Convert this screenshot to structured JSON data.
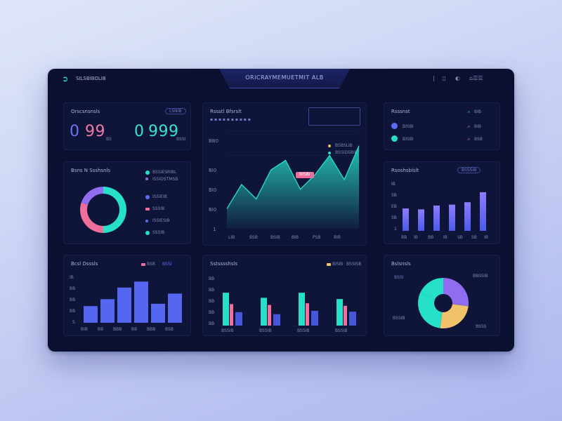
{
  "topbar": {
    "brand": "SILSBIBOLIB",
    "title": "ORICRAYMEMUETMIT ALB",
    "icons": [
      "help-icon",
      "info-icon",
      "settings-icon",
      "user-icon"
    ]
  },
  "kpi_card": {
    "title": "Orscsnsnsls",
    "badge": "LSNIB",
    "value_a": "99",
    "value_b": "999",
    "sub_a": "BS",
    "sub_b": "BSSI"
  },
  "donut_card": {
    "title": "Bsns N Ssshsnls",
    "legend": [
      "BSSIESRIBL",
      "ISSIDSTMSB",
      "ISSIEIB",
      "SSSIB",
      "ISSIESIB",
      "SSSIB"
    ]
  },
  "area_card": {
    "title": "Rssstl Bfsrslt",
    "badge": "",
    "legend": [
      "BSBSLIB",
      "BSSIDSBIB"
    ],
    "tooltip": "BISBI",
    "yticks": [
      "BB0",
      "BI0",
      "BI0",
      "BI0",
      "1"
    ],
    "xticks": [
      "LIB",
      "BSB",
      "BSIB",
      "BIB",
      "PSB",
      "BIB"
    ]
  },
  "bars_right_card": {
    "title": "Rsoshsblslt",
    "badge": "BSSSIB",
    "yticks": [
      "IB",
      "SB",
      "EB",
      "SB",
      "1"
    ],
    "xticks": [
      "BB",
      "IB",
      "BB",
      "IB",
      "SB",
      "SB",
      "IB"
    ]
  },
  "list_card": {
    "title": "Rsssnst",
    "rows": [
      {
        "label": "",
        "value": "BIB"
      },
      {
        "label": "BISBI",
        "value": "BIB"
      },
      {
        "label": "BISBI",
        "value": "BSB"
      }
    ]
  },
  "bars_left_card": {
    "title": "Bcsl Dsssls",
    "legend": [
      "BSB",
      "BSSI"
    ],
    "yticks": [
      "IB",
      "BB",
      "BB",
      "BB",
      "S"
    ],
    "xticks": [
      "BIB",
      "BB",
      "BBB",
      "BB",
      "BBB",
      "BSB"
    ]
  },
  "grouped_card": {
    "title": "Sstsssshsls",
    "legend": [
      "BISBI",
      "BSSISB"
    ],
    "yticks": [
      "BB",
      "BB",
      "BB",
      "BB",
      "BB"
    ],
    "xticks": [
      "BSSIB",
      "BSSIB",
      "BSSIB",
      "BSSIB"
    ]
  },
  "pie_card": {
    "title": "Bslsnsls",
    "labels": [
      "BSSI",
      "BBSSIB",
      "BSSIB",
      "BSSS"
    ]
  },
  "colors": {
    "teal": "#27e0c9",
    "blue": "#5b6cf5",
    "purple": "#8f6cf0",
    "pink": "#ef6f9a",
    "yellow": "#f0c36a"
  },
  "chart_data": [
    {
      "type": "area",
      "x": [
        1,
        2,
        3,
        4,
        5,
        6,
        7,
        8,
        9,
        10
      ],
      "series": [
        {
          "values": [
            0.2,
            0.45,
            0.3,
            0.6,
            0.7,
            0.4,
            0.55,
            0.75,
            0.5,
            0.85
          ]
        }
      ],
      "ylim": [
        0,
        1
      ]
    },
    {
      "type": "bar",
      "categories": [
        "1",
        "2",
        "3",
        "4",
        "5",
        "6"
      ],
      "values": [
        0.36,
        0.51,
        0.76,
        0.89,
        0.41,
        0.63
      ],
      "ylim": [
        0,
        1
      ]
    },
    {
      "type": "bar",
      "categories": [
        "1",
        "2",
        "3",
        "4",
        "5",
        "6"
      ],
      "values": [
        0.47,
        0.45,
        0.53,
        0.55,
        0.6,
        0.81
      ],
      "ylim": [
        0,
        1
      ]
    },
    {
      "type": "bar",
      "categories": [
        "1",
        "2",
        "3",
        "4"
      ],
      "series": [
        {
          "values": [
            0.78,
            0.66,
            0.78,
            0.63
          ]
        },
        {
          "values": [
            0.51,
            0.49,
            0.53,
            0.47
          ]
        },
        {
          "values": [
            0.32,
            0.27,
            0.35,
            0.33
          ]
        }
      ],
      "ylim": [
        0,
        1
      ]
    },
    {
      "type": "pie",
      "categories": [
        "a",
        "b",
        "c",
        "d"
      ],
      "values": [
        0.27,
        0.25,
        0.3,
        0.18
      ]
    },
    {
      "type": "pie",
      "categories": [
        "teal",
        "pink",
        "purple"
      ],
      "values": [
        0.5,
        0.3,
        0.2
      ]
    }
  ]
}
